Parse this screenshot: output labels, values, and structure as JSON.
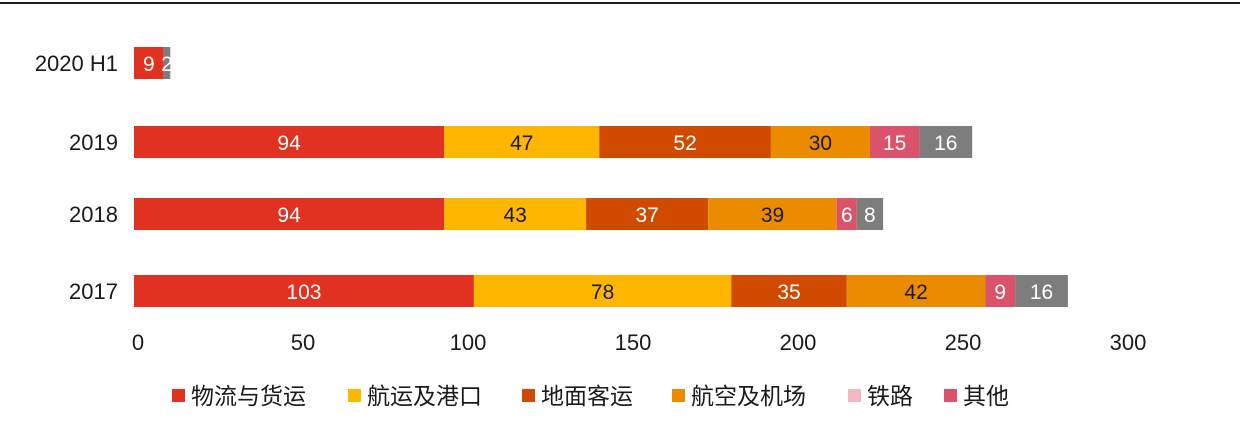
{
  "chart_data": {
    "type": "bar",
    "orientation": "horizontal",
    "stacked": true,
    "categories": [
      "2020 H1",
      "2019",
      "2018",
      "2017"
    ],
    "series": [
      {
        "name": "物流与货运",
        "color": "#e03121",
        "values": [
          9,
          94,
          94,
          103
        ]
      },
      {
        "name": "航运及港口",
        "color": "#ffb600",
        "values": [
          null,
          47,
          43,
          78
        ]
      },
      {
        "name": "地面客运",
        "color": "#d04a02",
        "values": [
          null,
          52,
          37,
          35
        ]
      },
      {
        "name": "航空及机场",
        "color": "#eb8c00",
        "values": [
          null,
          30,
          39,
          42
        ]
      },
      {
        "name": "铁路",
        "color": "#f2b8c0",
        "values": [
          null,
          null,
          null,
          null
        ]
      },
      {
        "name": "其他",
        "color": "#db536a",
        "values": [
          null,
          15,
          6,
          9
        ]
      },
      {
        "name": "",
        "color": "#7d7d7d",
        "values": [
          2,
          16,
          8,
          16
        ]
      }
    ],
    "xlim": [
      0,
      300
    ],
    "xticks": [
      0,
      50,
      100,
      150,
      200,
      250,
      300
    ],
    "grid": false,
    "legend_position": "bottom"
  }
}
